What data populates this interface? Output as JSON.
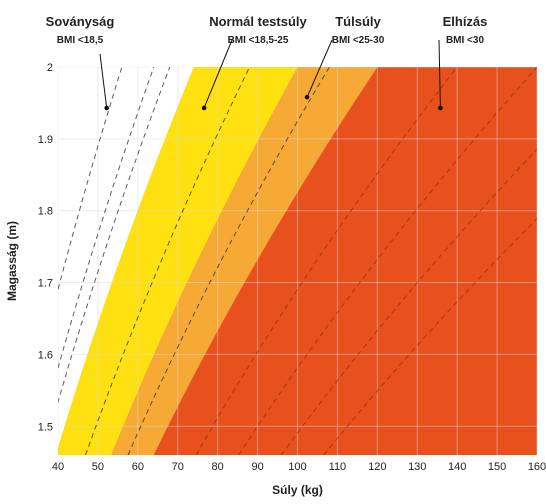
{
  "chart_data": {
    "type": "area",
    "xlabel": "Súly (kg)",
    "ylabel": "Magasság (m)",
    "xlim": [
      40,
      160
    ],
    "ylim": [
      1.46,
      2.0
    ],
    "x_ticks": [
      40,
      50,
      60,
      70,
      80,
      90,
      100,
      110,
      120,
      130,
      140,
      150,
      160
    ],
    "y_ticks": [
      1.5,
      1.6,
      1.7,
      1.8,
      1.9,
      2.0
    ],
    "x_tick_labels": [
      "40",
      "50",
      "60",
      "70",
      "80",
      "90",
      "100",
      "110",
      "120",
      "130",
      "140",
      "150",
      "160"
    ],
    "y_tick_labels": [
      "1.5",
      "1.6",
      "1.7",
      "1.8",
      "1.9",
      "2"
    ],
    "grid": true,
    "bands": [
      {
        "name": "Sovány",
        "bmi_max": 18.5,
        "color": "#ffffff"
      },
      {
        "name": "Normál",
        "bmi_min": 18.5,
        "bmi_max": 25,
        "color": "#ffe010"
      },
      {
        "name": "Túlsúly",
        "bmi_min": 25,
        "bmi_max": 30,
        "color": "#f7a935"
      },
      {
        "name": "Elhízás",
        "bmi_min": 30,
        "color": "#e8501e"
      }
    ],
    "dashed_bmi_lines": [
      14,
      16,
      17,
      22,
      27,
      35,
      40,
      45,
      50
    ],
    "categories": [
      {
        "name": "Soványság",
        "range": "BMI <18,5",
        "point": [
          52.2,
          1.943
        ],
        "label_color": "#222222"
      },
      {
        "name": "Normál testsúly",
        "range": "BMI <18,5-25",
        "point": [
          76.6,
          1.943
        ],
        "label_color": "#222222"
      },
      {
        "name": "Túlsúly",
        "range": "BMI <25-30",
        "point": [
          102.4,
          1.958
        ],
        "label_color": "#222222"
      },
      {
        "name": "Elhízás",
        "range": "BMI <30",
        "point": [
          135.8,
          1.943
        ],
        "label_color": "#222222"
      }
    ]
  }
}
